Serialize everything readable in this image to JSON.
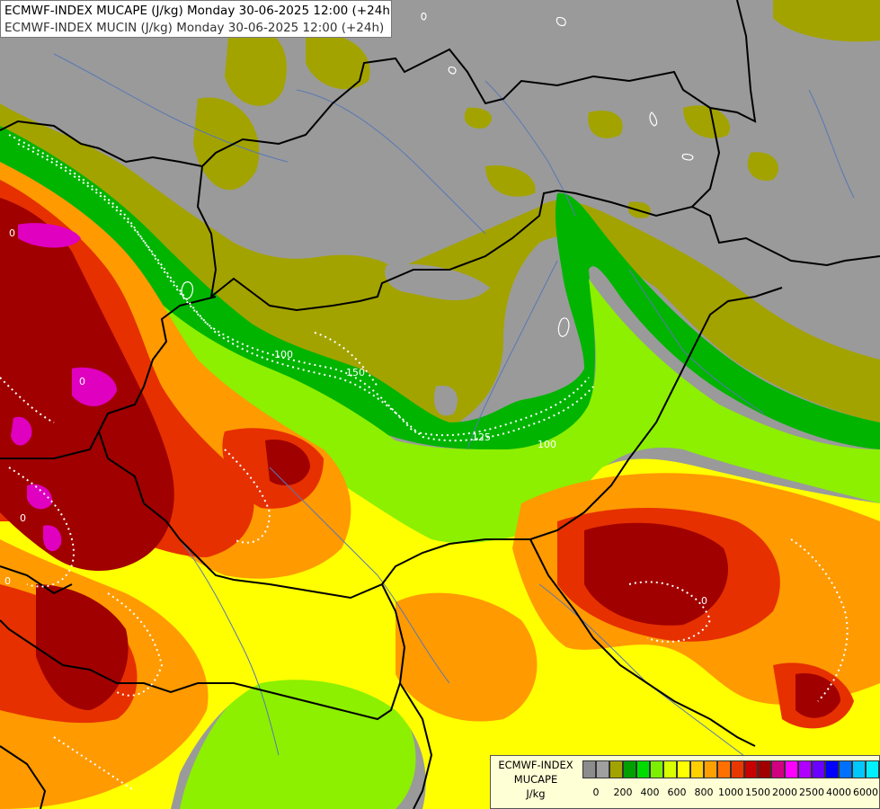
{
  "header": {
    "line1": "ECMWF-INDEX MUCAPE (J/kg) Monday 30-06-2025 12:00 (+24h)",
    "line2": "ECMWF-INDEX MUCIN (J/kg) Monday 30-06-2025 12:00 (+24h)"
  },
  "legend": {
    "title_line1": "ECMWF-INDEX",
    "title_line2": "MUCAPE",
    "title_line3": "J/kg",
    "swatches": [
      "#8c8c8c",
      "#a0a0a0",
      "#a3a300",
      "#00a000",
      "#00dc00",
      "#7cf000",
      "#d8ff00",
      "#ffff00",
      "#ffd000",
      "#ffa000",
      "#ff7000",
      "#e83800",
      "#c80000",
      "#a00000",
      "#d00080",
      "#ff00ff",
      "#b000ff",
      "#6a00ff",
      "#0000ff",
      "#0070ff",
      "#00c8ff",
      "#00f0ff",
      "#80ffff",
      "#ffffff"
    ],
    "ticks": [
      "0",
      "200",
      "400",
      "600",
      "800",
      "1000",
      "1500",
      "2000",
      "2500",
      "4000",
      "6000"
    ]
  },
  "contour_labels": [
    "0",
    "0",
    "100",
    "150",
    "125",
    "100",
    "0",
    "0",
    "0"
  ],
  "colors": {
    "no_cape": "#9a9a9a",
    "low_cape": "#a3a300",
    "green": "#00c000",
    "lime": "#8cf000",
    "yellow": "#ffff00",
    "orange": "#ff9000",
    "red": "#e03000",
    "darkred": "#a00000",
    "magenta": "#e000c0",
    "border": "#000000",
    "river": "#5a78b4",
    "contour": "#ffffff"
  }
}
